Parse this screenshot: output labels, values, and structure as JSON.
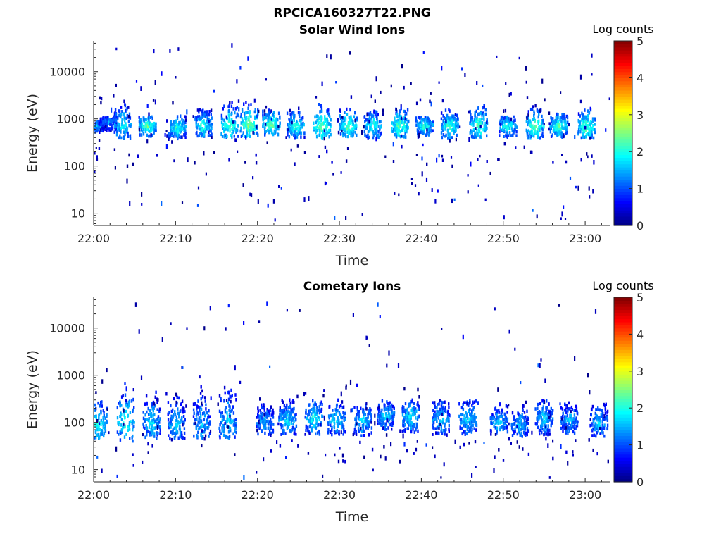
{
  "figure_title": "RPCICA160327T22.PNG",
  "chart_data": [
    {
      "type": "heatmap",
      "title": "Solar Wind Ions",
      "xlabel": "Time",
      "ylabel": "Energy (eV)",
      "x_ticks": [
        "22:00",
        "22:10",
        "22:20",
        "22:30",
        "22:40",
        "22:50",
        "23:00"
      ],
      "x_range_minutes": [
        0,
        63
      ],
      "y_scale": "log",
      "y_ticks": [
        "10",
        "100",
        "1000",
        "10000"
      ],
      "y_tick_values": [
        10,
        100,
        1000,
        10000
      ],
      "y_range": [
        5.5,
        45000
      ],
      "colorbar": {
        "title": "Log counts",
        "ticks": [
          "0",
          "1",
          "2",
          "3",
          "4",
          "5"
        ],
        "range": [
          0,
          5
        ],
        "colormap": "jet"
      },
      "bursts": [
        {
          "t": 0.1,
          "e": 700,
          "lo": 500,
          "hi": 900,
          "peak": 1.6
        },
        {
          "t": 1.7,
          "e": 850,
          "lo": 550,
          "hi": 1100,
          "peak": 1.4
        },
        {
          "t": 3.5,
          "e": 700,
          "lo": 380,
          "hi": 2400,
          "peak": 2.0
        },
        {
          "t": 6.5,
          "e": 700,
          "lo": 420,
          "hi": 1100,
          "peak": 2.4
        },
        {
          "t": 10.1,
          "e": 650,
          "lo": 380,
          "hi": 1200,
          "peak": 2.1
        },
        {
          "t": 13.3,
          "e": 700,
          "lo": 420,
          "hi": 1700,
          "peak": 2.1
        },
        {
          "t": 16.5,
          "e": 700,
          "lo": 400,
          "hi": 2400,
          "peak": 2.3
        },
        {
          "t": 18.9,
          "e": 750,
          "lo": 420,
          "hi": 2300,
          "peak": 2.6
        },
        {
          "t": 21.6,
          "e": 750,
          "lo": 450,
          "hi": 1600,
          "peak": 2.5
        },
        {
          "t": 24.6,
          "e": 700,
          "lo": 380,
          "hi": 1400,
          "peak": 2.1
        },
        {
          "t": 27.8,
          "e": 700,
          "lo": 380,
          "hi": 2300,
          "peak": 2.5
        },
        {
          "t": 31.0,
          "e": 700,
          "lo": 420,
          "hi": 1800,
          "peak": 2.4
        },
        {
          "t": 34.0,
          "e": 700,
          "lo": 380,
          "hi": 1500,
          "peak": 2.1
        },
        {
          "t": 37.3,
          "e": 700,
          "lo": 400,
          "hi": 1900,
          "peak": 2.4
        },
        {
          "t": 40.3,
          "e": 700,
          "lo": 400,
          "hi": 1100,
          "peak": 2.1
        },
        {
          "t": 43.4,
          "e": 700,
          "lo": 380,
          "hi": 1600,
          "peak": 2.2
        },
        {
          "t": 46.9,
          "e": 700,
          "lo": 400,
          "hi": 2200,
          "peak": 2.3
        },
        {
          "t": 50.5,
          "e": 700,
          "lo": 400,
          "hi": 1100,
          "peak": 2.1
        },
        {
          "t": 53.8,
          "e": 700,
          "lo": 380,
          "hi": 2000,
          "peak": 2.4
        },
        {
          "t": 56.7,
          "e": 700,
          "lo": 400,
          "hi": 1300,
          "peak": 2.3
        },
        {
          "t": 60.1,
          "e": 650,
          "lo": 380,
          "hi": 1800,
          "peak": 2.4
        }
      ]
    },
    {
      "type": "heatmap",
      "title": "Cometary Ions",
      "xlabel": "Time",
      "ylabel": "Energy (eV)",
      "x_ticks": [
        "22:00",
        "22:10",
        "22:20",
        "22:30",
        "22:40",
        "22:50",
        "23:00"
      ],
      "x_range_minutes": [
        0,
        63
      ],
      "y_scale": "log",
      "y_ticks": [
        "10",
        "100",
        "1000",
        "10000"
      ],
      "y_tick_values": [
        10,
        100,
        1000,
        10000
      ],
      "y_range": [
        5.5,
        45000
      ],
      "colorbar": {
        "title": "Log counts",
        "ticks": [
          "0",
          "1",
          "2",
          "3",
          "4",
          "5"
        ],
        "range": [
          0,
          5
        ],
        "colormap": "jet"
      },
      "bursts": [
        {
          "t": 0.5,
          "e": 90,
          "lo": 45,
          "hi": 300,
          "peak": 2.1
        },
        {
          "t": 3.8,
          "e": 100,
          "lo": 40,
          "hi": 1100,
          "peak": 2.0
        },
        {
          "t": 7.0,
          "e": 100,
          "lo": 45,
          "hi": 450,
          "peak": 1.8
        },
        {
          "t": 10.0,
          "e": 90,
          "lo": 45,
          "hi": 400,
          "peak": 1.7
        },
        {
          "t": 13.1,
          "e": 90,
          "lo": 45,
          "hi": 700,
          "peak": 1.6
        },
        {
          "t": 16.3,
          "e": 100,
          "lo": 45,
          "hi": 700,
          "peak": 1.8
        },
        {
          "t": 20.8,
          "e": 100,
          "lo": 55,
          "hi": 260,
          "peak": 1.6
        },
        {
          "t": 23.6,
          "e": 110,
          "lo": 55,
          "hi": 300,
          "peak": 1.8
        },
        {
          "t": 26.8,
          "e": 120,
          "lo": 55,
          "hi": 300,
          "peak": 2.0
        },
        {
          "t": 29.6,
          "e": 110,
          "lo": 55,
          "hi": 300,
          "peak": 1.8
        },
        {
          "t": 32.8,
          "e": 110,
          "lo": 50,
          "hi": 260,
          "peak": 1.8
        },
        {
          "t": 35.6,
          "e": 140,
          "lo": 70,
          "hi": 300,
          "peak": 1.7
        },
        {
          "t": 38.6,
          "e": 130,
          "lo": 60,
          "hi": 300,
          "peak": 1.9
        },
        {
          "t": 42.3,
          "e": 110,
          "lo": 55,
          "hi": 300,
          "peak": 1.8
        },
        {
          "t": 45.6,
          "e": 120,
          "lo": 55,
          "hi": 300,
          "peak": 1.8
        },
        {
          "t": 49.4,
          "e": 100,
          "lo": 55,
          "hi": 250,
          "peak": 1.7
        },
        {
          "t": 52.0,
          "e": 90,
          "lo": 50,
          "hi": 230,
          "peak": 1.6
        },
        {
          "t": 54.9,
          "e": 120,
          "lo": 55,
          "hi": 300,
          "peak": 1.7
        },
        {
          "t": 58.0,
          "e": 110,
          "lo": 55,
          "hi": 260,
          "peak": 1.6
        },
        {
          "t": 61.6,
          "e": 100,
          "lo": 50,
          "hi": 250,
          "peak": 1.7
        }
      ]
    }
  ],
  "colors": {
    "axis": "#262626",
    "background": "#ffffff"
  }
}
